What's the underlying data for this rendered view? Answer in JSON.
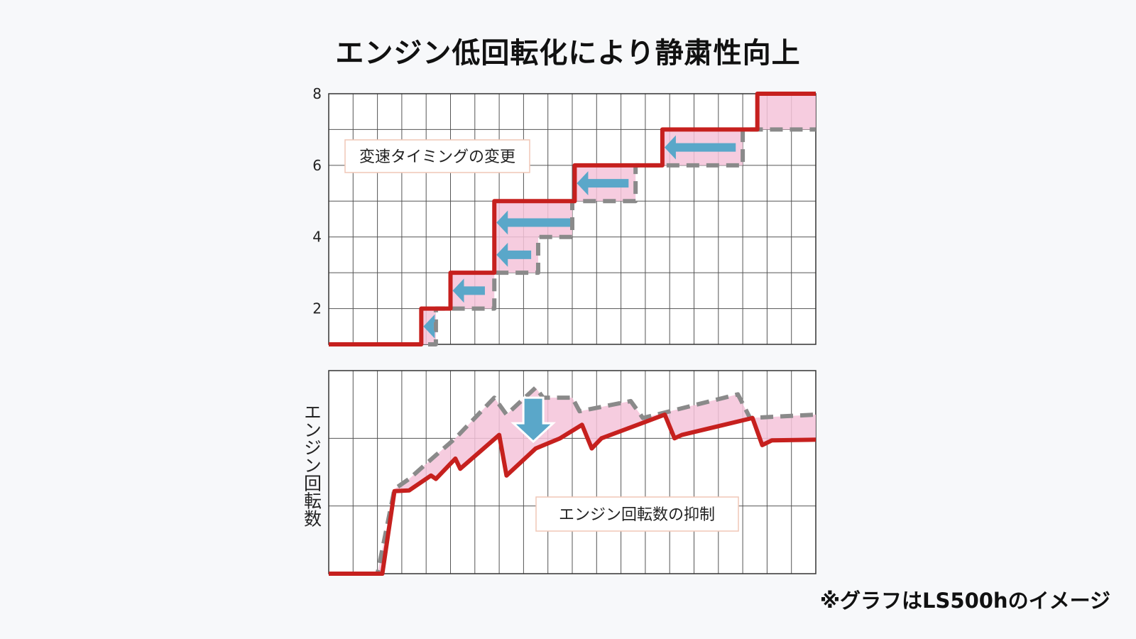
{
  "title": "エンジン低回転化により静粛性向上",
  "note": "※グラフはLS500hのイメージ",
  "colors": {
    "new": "#c6201e",
    "old": "#8a8a8a",
    "fill": "#f4c3d9",
    "arrow": "#5aa7c9",
    "grid": "#555555"
  },
  "chart_data": [
    {
      "type": "line",
      "name": "gear-chart",
      "annotation": "変速タイミングの変更",
      "x_range": [
        0,
        20
      ],
      "ylim": [
        1,
        8
      ],
      "y_ticks": [
        "2",
        "4",
        "6",
        "8"
      ],
      "series": [
        {
          "style": "solid",
          "x": [
            0,
            3.8,
            3.8,
            5,
            5,
            6.8,
            6.8,
            10.1,
            10.1,
            13.7,
            13.7,
            17.6,
            17.6,
            20
          ],
          "y": [
            1,
            1,
            2,
            2,
            3,
            3,
            5,
            5,
            6,
            6,
            7,
            7,
            8,
            8
          ]
        },
        {
          "style": "dashed",
          "x": [
            0,
            4.4,
            4.4,
            6.8,
            6.8,
            8.6,
            8.6,
            10,
            10,
            12.6,
            12.6,
            17,
            17,
            20
          ],
          "y": [
            1,
            1,
            2,
            2,
            3,
            3,
            4,
            4,
            5,
            5,
            6,
            6,
            7,
            7
          ]
        }
      ],
      "arrows": [
        {
          "x_from": 4.4,
          "x_to": 3.8,
          "y": 1.5
        },
        {
          "x_from": 6.5,
          "x_to": 5.0,
          "y": 2.5
        },
        {
          "x_from": 8.4,
          "x_to": 6.8,
          "y": 3.5
        },
        {
          "x_from": 10.0,
          "x_to": 6.8,
          "y": 4.4
        },
        {
          "x_from": 12.4,
          "x_to": 10.1,
          "y": 5.5
        },
        {
          "x_from": 16.8,
          "x_to": 13.7,
          "y": 6.5
        }
      ]
    },
    {
      "type": "line",
      "name": "rpm-chart",
      "ylabel": "エンジン回転数",
      "annotation": "エンジン回転数の抑制",
      "x_range": [
        0,
        20
      ],
      "ylim": [
        0,
        3
      ],
      "series": [
        {
          "style": "solid",
          "x": [
            0,
            2.2,
            2.7,
            3.3,
            4.2,
            4.4,
            5.2,
            5.4,
            7.0,
            7.3,
            8.5,
            9.5,
            10.4,
            10.8,
            11.2,
            13.8,
            14.2,
            14.5,
            17.4,
            17.8,
            18.2,
            20
          ],
          "y": [
            0,
            0,
            1.22,
            1.23,
            1.45,
            1.4,
            1.7,
            1.55,
            2.05,
            1.45,
            1.85,
            2.0,
            2.2,
            1.85,
            2.0,
            2.35,
            2.0,
            2.05,
            2.3,
            1.9,
            1.97,
            1.98
          ]
        },
        {
          "style": "dashed",
          "x": [
            0,
            2.0,
            2.7,
            3.3,
            4.4,
            5.2,
            6.8,
            7.3,
            8.5,
            8.8,
            10.0,
            10.3,
            12.4,
            12.9,
            16.8,
            17.3,
            20
          ],
          "y": [
            0,
            0,
            1.25,
            1.4,
            1.75,
            2.0,
            2.6,
            2.35,
            2.75,
            2.6,
            2.6,
            2.4,
            2.55,
            2.3,
            2.65,
            2.3,
            2.35
          ]
        }
      ],
      "down_arrow": {
        "x": 8.4,
        "y_from": 2.6,
        "y_to": 1.95
      }
    }
  ]
}
